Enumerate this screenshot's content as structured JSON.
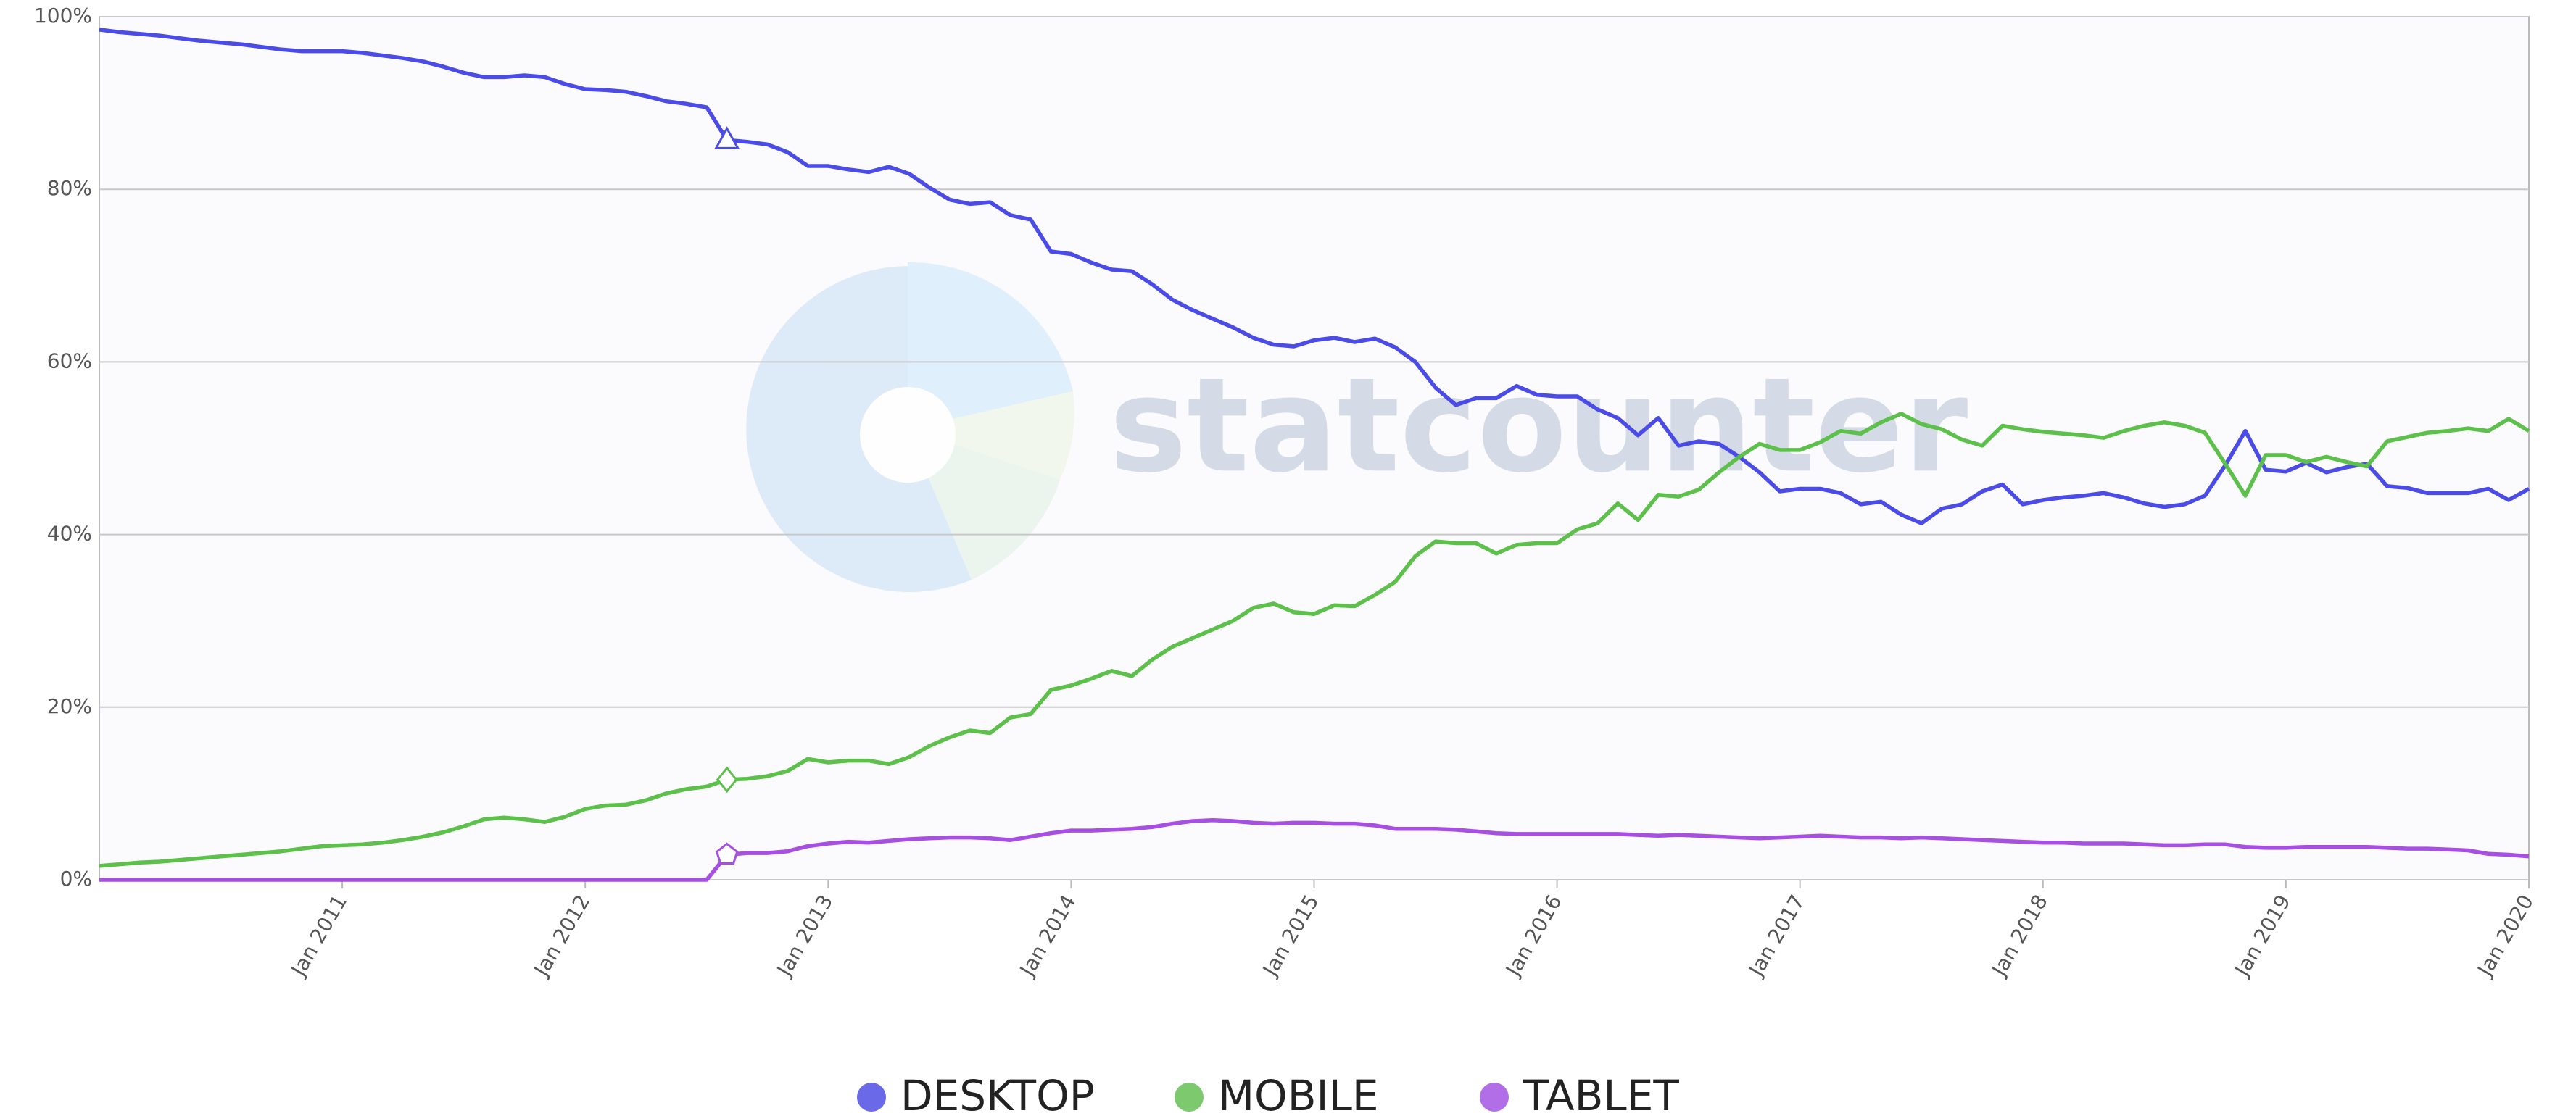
{
  "chart_data": {
    "type": "line",
    "watermark": "statcounter",
    "x": [
      "2010-01",
      "2010-02",
      "2010-03",
      "2010-04",
      "2010-05",
      "2010-06",
      "2010-07",
      "2010-08",
      "2010-09",
      "2010-10",
      "2010-11",
      "2010-12",
      "2011-01",
      "2011-02",
      "2011-03",
      "2011-04",
      "2011-05",
      "2011-06",
      "2011-07",
      "2011-08",
      "2011-09",
      "2011-10",
      "2011-11",
      "2011-12",
      "2012-01",
      "2012-02",
      "2012-03",
      "2012-04",
      "2012-05",
      "2012-06",
      "2012-07",
      "2012-08",
      "2012-09",
      "2012-10",
      "2012-11",
      "2012-12",
      "2013-01",
      "2013-02",
      "2013-03",
      "2013-04",
      "2013-05",
      "2013-06",
      "2013-07",
      "2013-08",
      "2013-09",
      "2013-10",
      "2013-11",
      "2013-12",
      "2014-01",
      "2014-02",
      "2014-03",
      "2014-04",
      "2014-05",
      "2014-06",
      "2014-07",
      "2014-08",
      "2014-09",
      "2014-10",
      "2014-11",
      "2014-12",
      "2015-01",
      "2015-02",
      "2015-03",
      "2015-04",
      "2015-05",
      "2015-06",
      "2015-07",
      "2015-08",
      "2015-09",
      "2015-10",
      "2015-11",
      "2015-12",
      "2016-01",
      "2016-02",
      "2016-03",
      "2016-04",
      "2016-05",
      "2016-06",
      "2016-07",
      "2016-08",
      "2016-09",
      "2016-10",
      "2016-11",
      "2016-12",
      "2017-01",
      "2017-02",
      "2017-03",
      "2017-04",
      "2017-05",
      "2017-06",
      "2017-07",
      "2017-08",
      "2017-09",
      "2017-10",
      "2017-11",
      "2017-12",
      "2018-01",
      "2018-02",
      "2018-03",
      "2018-04",
      "2018-05",
      "2018-06",
      "2018-07",
      "2018-08",
      "2018-09",
      "2018-10",
      "2018-11",
      "2018-12",
      "2019-01",
      "2019-02",
      "2019-03",
      "2019-04",
      "2019-05",
      "2019-06",
      "2019-07",
      "2019-08",
      "2019-09",
      "2019-10",
      "2019-11",
      "2019-12",
      "2020-01"
    ],
    "series": [
      {
        "name": "DESKTOP",
        "color": "#4b4be8",
        "legend_color": "#6a6ae8",
        "values": [
          98.5,
          98.2,
          98,
          97.8,
          97.5,
          97.2,
          97,
          96.8,
          96.5,
          96.2,
          96,
          96,
          96,
          95.8,
          95.5,
          95.2,
          94.8,
          94.2,
          93.5,
          93,
          93,
          93.2,
          93,
          92.2,
          91.6,
          91.5,
          91.3,
          90.8,
          90.2,
          89.9,
          89.5,
          85.7,
          85.5,
          85.2,
          84.3,
          82.7,
          82.7,
          82.3,
          82,
          82.6,
          81.8,
          80.2,
          78.8,
          78.3,
          78.5,
          77,
          76.5,
          72.8,
          72.5,
          71.5,
          70.7,
          70.5,
          69,
          67.2,
          66,
          65,
          64,
          62.8,
          62,
          61.8,
          62.5,
          62.8,
          62.3,
          62.7,
          61.7,
          60,
          57,
          55,
          55.8,
          55.8,
          57.2,
          56.2,
          56,
          56,
          54.5,
          53.5,
          51.5,
          53.5,
          50.3,
          50.8,
          50.5,
          49,
          47.2,
          45,
          45.3,
          45.3,
          44.8,
          43.5,
          43.8,
          42.3,
          41.3,
          43,
          43.5,
          45,
          45.8,
          43.5,
          44,
          44.3,
          44.5,
          44.8,
          44.3,
          43.6,
          43.2,
          43.5,
          44.5,
          48,
          52,
          47.5,
          47.3,
          48.3,
          47.2,
          47.8,
          48.2,
          45.6,
          45.4,
          44.8,
          44.8,
          44.8,
          45.3,
          44,
          45.3
        ]
      },
      {
        "name": "MOBILE",
        "color": "#5cc04a",
        "legend_color": "#7cc96e",
        "values": [
          1.6,
          1.8,
          2,
          2.1,
          2.3,
          2.5,
          2.7,
          2.9,
          3.1,
          3.3,
          3.6,
          3.9,
          4,
          4.1,
          4.3,
          4.6,
          5,
          5.5,
          6.2,
          7,
          7.2,
          7,
          6.7,
          7.3,
          8.2,
          8.6,
          8.7,
          9.2,
          10,
          10.5,
          10.8,
          11.6,
          11.7,
          12,
          12.6,
          14,
          13.6,
          13.8,
          13.8,
          13.4,
          14.2,
          15.5,
          16.5,
          17.3,
          17,
          18.8,
          19.2,
          22,
          22.5,
          23.3,
          24.2,
          23.6,
          25.5,
          27,
          28,
          29,
          30,
          31.5,
          32,
          31,
          30.8,
          31.8,
          31.7,
          33,
          34.5,
          37.5,
          39.2,
          39,
          39,
          37.8,
          38.8,
          39,
          39,
          40.6,
          41.3,
          43.6,
          41.7,
          44.6,
          44.4,
          45.2,
          47.2,
          49,
          50.5,
          49.8,
          49.8,
          50.7,
          52,
          51.7,
          53,
          54,
          52.8,
          52.2,
          51,
          50.3,
          52.6,
          52.2,
          51.9,
          51.7,
          51.5,
          51.2,
          52,
          52.6,
          53,
          52.6,
          51.8,
          48.2,
          44.5,
          49.2,
          49.2,
          48.4,
          49,
          48.4,
          47.9,
          50.8,
          51.3,
          51.8,
          52,
          52.3,
          52,
          53.4,
          52
        ]
      },
      {
        "name": "TABLET",
        "color": "#a64fe0",
        "legend_color": "#b26ee6",
        "values": [
          0,
          0,
          0,
          0,
          0,
          0,
          0,
          0,
          0,
          0,
          0,
          0,
          0,
          0,
          0,
          0,
          0,
          0,
          0,
          0,
          0,
          0,
          0,
          0,
          0,
          0,
          0,
          0,
          0,
          0,
          0,
          2.9,
          3.1,
          3.1,
          3.3,
          3.9,
          4.2,
          4.4,
          4.3,
          4.5,
          4.7,
          4.8,
          4.9,
          4.9,
          4.8,
          4.6,
          5,
          5.4,
          5.7,
          5.7,
          5.8,
          5.9,
          6.1,
          6.5,
          6.8,
          6.9,
          6.8,
          6.6,
          6.5,
          6.6,
          6.6,
          6.5,
          6.5,
          6.3,
          5.9,
          5.9,
          5.9,
          5.8,
          5.6,
          5.4,
          5.3,
          5.3,
          5.3,
          5.3,
          5.3,
          5.3,
          5.2,
          5.1,
          5.2,
          5.1,
          5,
          4.9,
          4.8,
          4.9,
          5,
          5.1,
          5,
          4.9,
          4.9,
          4.8,
          4.9,
          4.8,
          4.7,
          4.6,
          4.5,
          4.4,
          4.3,
          4.3,
          4.2,
          4.2,
          4.2,
          4.1,
          4,
          4,
          4.1,
          4.1,
          3.8,
          3.7,
          3.7,
          3.8,
          3.8,
          3.8,
          3.8,
          3.7,
          3.6,
          3.6,
          3.5,
          3.4,
          3,
          2.9,
          2.7
        ]
      }
    ],
    "xlim": [
      "2010-01",
      "2020-01"
    ],
    "xticks": [
      {
        "value": "2011-01",
        "label": "Jan 2011"
      },
      {
        "value": "2012-01",
        "label": "Jan 2012"
      },
      {
        "value": "2013-01",
        "label": "Jan 2013"
      },
      {
        "value": "2014-01",
        "label": "Jan 2014"
      },
      {
        "value": "2015-01",
        "label": "Jan 2015"
      },
      {
        "value": "2016-01",
        "label": "Jan 2016"
      },
      {
        "value": "2017-01",
        "label": "Jan 2017"
      },
      {
        "value": "2018-01",
        "label": "Jan 2018"
      },
      {
        "value": "2019-01",
        "label": "Jan 2019"
      },
      {
        "value": "2020-01",
        "label": "Jan 2020"
      }
    ],
    "ylim": [
      0,
      100
    ],
    "yticks": [
      {
        "value": 0,
        "label": "0%"
      },
      {
        "value": 20,
        "label": "20%"
      },
      {
        "value": 40,
        "label": "40%"
      },
      {
        "value": 60,
        "label": "60%"
      },
      {
        "value": 80,
        "label": "80%"
      },
      {
        "value": 100,
        "label": "100%"
      }
    ],
    "grid": true,
    "legend": "bottom"
  }
}
